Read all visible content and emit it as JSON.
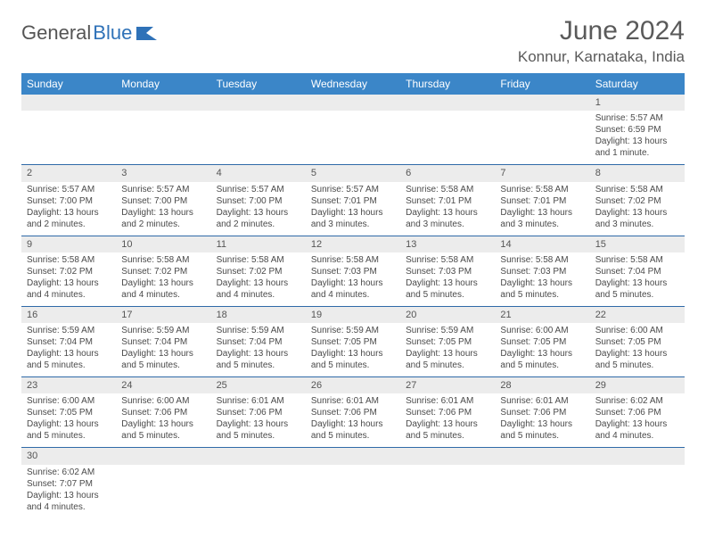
{
  "brand": {
    "part1": "General",
    "part2": "Blue"
  },
  "title": "June 2024",
  "location": "Konnur, Karnataka, India",
  "colors": {
    "header_bg": "#3b86c8",
    "border": "#2f6aa8",
    "daynum_bg": "#ececec",
    "text": "#4a4a4a",
    "title": "#5a5a5a"
  },
  "day_headers": [
    "Sunday",
    "Monday",
    "Tuesday",
    "Wednesday",
    "Thursday",
    "Friday",
    "Saturday"
  ],
  "weeks": [
    [
      null,
      null,
      null,
      null,
      null,
      null,
      {
        "n": "1",
        "sr": "Sunrise: 5:57 AM",
        "ss": "Sunset: 6:59 PM",
        "d1": "Daylight: 13 hours",
        "d2": "and 1 minute."
      }
    ],
    [
      {
        "n": "2",
        "sr": "Sunrise: 5:57 AM",
        "ss": "Sunset: 7:00 PM",
        "d1": "Daylight: 13 hours",
        "d2": "and 2 minutes."
      },
      {
        "n": "3",
        "sr": "Sunrise: 5:57 AM",
        "ss": "Sunset: 7:00 PM",
        "d1": "Daylight: 13 hours",
        "d2": "and 2 minutes."
      },
      {
        "n": "4",
        "sr": "Sunrise: 5:57 AM",
        "ss": "Sunset: 7:00 PM",
        "d1": "Daylight: 13 hours",
        "d2": "and 2 minutes."
      },
      {
        "n": "5",
        "sr": "Sunrise: 5:57 AM",
        "ss": "Sunset: 7:01 PM",
        "d1": "Daylight: 13 hours",
        "d2": "and 3 minutes."
      },
      {
        "n": "6",
        "sr": "Sunrise: 5:58 AM",
        "ss": "Sunset: 7:01 PM",
        "d1": "Daylight: 13 hours",
        "d2": "and 3 minutes."
      },
      {
        "n": "7",
        "sr": "Sunrise: 5:58 AM",
        "ss": "Sunset: 7:01 PM",
        "d1": "Daylight: 13 hours",
        "d2": "and 3 minutes."
      },
      {
        "n": "8",
        "sr": "Sunrise: 5:58 AM",
        "ss": "Sunset: 7:02 PM",
        "d1": "Daylight: 13 hours",
        "d2": "and 3 minutes."
      }
    ],
    [
      {
        "n": "9",
        "sr": "Sunrise: 5:58 AM",
        "ss": "Sunset: 7:02 PM",
        "d1": "Daylight: 13 hours",
        "d2": "and 4 minutes."
      },
      {
        "n": "10",
        "sr": "Sunrise: 5:58 AM",
        "ss": "Sunset: 7:02 PM",
        "d1": "Daylight: 13 hours",
        "d2": "and 4 minutes."
      },
      {
        "n": "11",
        "sr": "Sunrise: 5:58 AM",
        "ss": "Sunset: 7:02 PM",
        "d1": "Daylight: 13 hours",
        "d2": "and 4 minutes."
      },
      {
        "n": "12",
        "sr": "Sunrise: 5:58 AM",
        "ss": "Sunset: 7:03 PM",
        "d1": "Daylight: 13 hours",
        "d2": "and 4 minutes."
      },
      {
        "n": "13",
        "sr": "Sunrise: 5:58 AM",
        "ss": "Sunset: 7:03 PM",
        "d1": "Daylight: 13 hours",
        "d2": "and 5 minutes."
      },
      {
        "n": "14",
        "sr": "Sunrise: 5:58 AM",
        "ss": "Sunset: 7:03 PM",
        "d1": "Daylight: 13 hours",
        "d2": "and 5 minutes."
      },
      {
        "n": "15",
        "sr": "Sunrise: 5:58 AM",
        "ss": "Sunset: 7:04 PM",
        "d1": "Daylight: 13 hours",
        "d2": "and 5 minutes."
      }
    ],
    [
      {
        "n": "16",
        "sr": "Sunrise: 5:59 AM",
        "ss": "Sunset: 7:04 PM",
        "d1": "Daylight: 13 hours",
        "d2": "and 5 minutes."
      },
      {
        "n": "17",
        "sr": "Sunrise: 5:59 AM",
        "ss": "Sunset: 7:04 PM",
        "d1": "Daylight: 13 hours",
        "d2": "and 5 minutes."
      },
      {
        "n": "18",
        "sr": "Sunrise: 5:59 AM",
        "ss": "Sunset: 7:04 PM",
        "d1": "Daylight: 13 hours",
        "d2": "and 5 minutes."
      },
      {
        "n": "19",
        "sr": "Sunrise: 5:59 AM",
        "ss": "Sunset: 7:05 PM",
        "d1": "Daylight: 13 hours",
        "d2": "and 5 minutes."
      },
      {
        "n": "20",
        "sr": "Sunrise: 5:59 AM",
        "ss": "Sunset: 7:05 PM",
        "d1": "Daylight: 13 hours",
        "d2": "and 5 minutes."
      },
      {
        "n": "21",
        "sr": "Sunrise: 6:00 AM",
        "ss": "Sunset: 7:05 PM",
        "d1": "Daylight: 13 hours",
        "d2": "and 5 minutes."
      },
      {
        "n": "22",
        "sr": "Sunrise: 6:00 AM",
        "ss": "Sunset: 7:05 PM",
        "d1": "Daylight: 13 hours",
        "d2": "and 5 minutes."
      }
    ],
    [
      {
        "n": "23",
        "sr": "Sunrise: 6:00 AM",
        "ss": "Sunset: 7:05 PM",
        "d1": "Daylight: 13 hours",
        "d2": "and 5 minutes."
      },
      {
        "n": "24",
        "sr": "Sunrise: 6:00 AM",
        "ss": "Sunset: 7:06 PM",
        "d1": "Daylight: 13 hours",
        "d2": "and 5 minutes."
      },
      {
        "n": "25",
        "sr": "Sunrise: 6:01 AM",
        "ss": "Sunset: 7:06 PM",
        "d1": "Daylight: 13 hours",
        "d2": "and 5 minutes."
      },
      {
        "n": "26",
        "sr": "Sunrise: 6:01 AM",
        "ss": "Sunset: 7:06 PM",
        "d1": "Daylight: 13 hours",
        "d2": "and 5 minutes."
      },
      {
        "n": "27",
        "sr": "Sunrise: 6:01 AM",
        "ss": "Sunset: 7:06 PM",
        "d1": "Daylight: 13 hours",
        "d2": "and 5 minutes."
      },
      {
        "n": "28",
        "sr": "Sunrise: 6:01 AM",
        "ss": "Sunset: 7:06 PM",
        "d1": "Daylight: 13 hours",
        "d2": "and 5 minutes."
      },
      {
        "n": "29",
        "sr": "Sunrise: 6:02 AM",
        "ss": "Sunset: 7:06 PM",
        "d1": "Daylight: 13 hours",
        "d2": "and 4 minutes."
      }
    ],
    [
      {
        "n": "30",
        "sr": "Sunrise: 6:02 AM",
        "ss": "Sunset: 7:07 PM",
        "d1": "Daylight: 13 hours",
        "d2": "and 4 minutes."
      },
      null,
      null,
      null,
      null,
      null,
      null
    ]
  ]
}
